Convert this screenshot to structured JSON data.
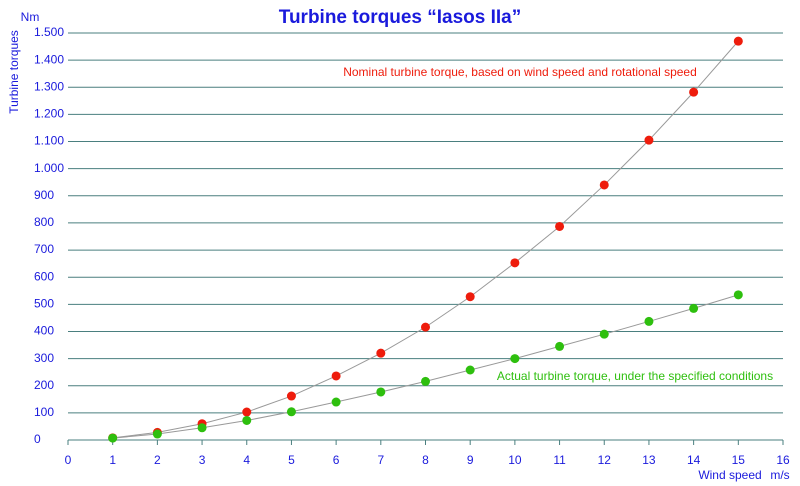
{
  "chart_data": {
    "type": "scatter",
    "title": "Turbine torques “Iasos IIa”",
    "y_label": "Turbine torques",
    "y_unit": "Nm",
    "x_label": "Wind speed",
    "x_unit": "m/s",
    "x": [
      1,
      2,
      3,
      4,
      5,
      6,
      7,
      8,
      9,
      10,
      11,
      12,
      13,
      14,
      15
    ],
    "series": [
      {
        "name": "Nominal turbine torque, based on wind speed and rotational speed",
        "color": "#ee1c0c",
        "values": [
          8,
          28,
          60,
          103,
          162,
          236,
          320,
          416,
          528,
          653,
          787,
          940,
          1105,
          1282,
          1470
        ]
      },
      {
        "name": "Actual turbine torque, under the specified conditions",
        "color": "#2ebf0e",
        "values": [
          7,
          22,
          45,
          72,
          104,
          140,
          177,
          216,
          258,
          300,
          345,
          390,
          437,
          485,
          535
        ]
      }
    ],
    "xlim": [
      0,
      16
    ],
    "xticks": [
      0,
      1,
      2,
      3,
      4,
      5,
      6,
      7,
      8,
      9,
      10,
      11,
      12,
      13,
      14,
      15,
      16
    ],
    "ylim": [
      0,
      1500
    ],
    "yticks": [
      0,
      100,
      200,
      300,
      400,
      500,
      600,
      700,
      800,
      900,
      {
        "value": 1000,
        "label": "1.000"
      },
      {
        "value": 1100,
        "label": "1.100"
      },
      {
        "value": 1200,
        "label": "1.200"
      },
      {
        "value": 1300,
        "label": "1.300"
      },
      {
        "value": 1400,
        "label": "1.400"
      },
      {
        "value": 1500,
        "label": "1.500"
      }
    ],
    "grid": true
  }
}
